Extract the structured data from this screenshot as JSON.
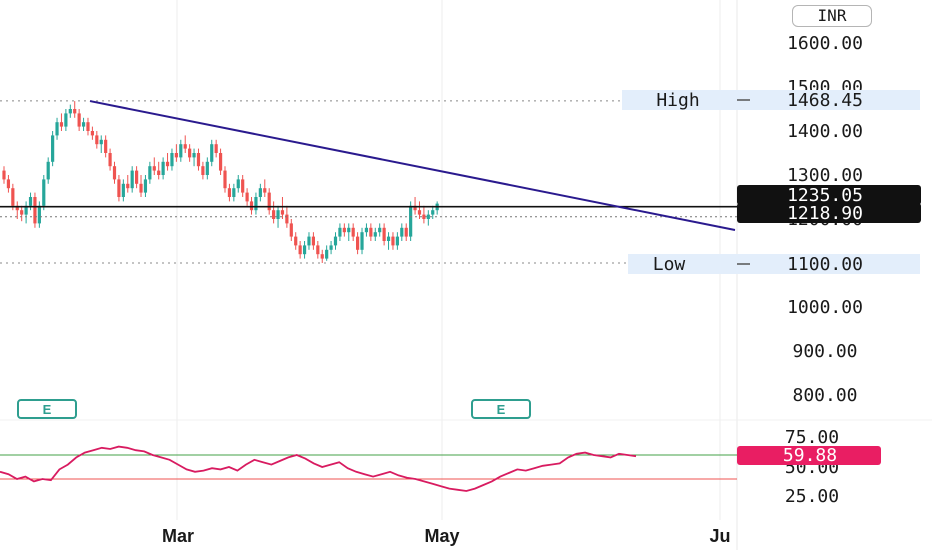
{
  "currency_label": "INR",
  "price_axis": {
    "ticks": [
      "1600.00",
      "1500.00",
      "1400.00",
      "1300.00",
      "1200.00",
      "1000.00",
      "900.00",
      "800.00"
    ]
  },
  "rsi_axis": {
    "ticks": [
      "75.00",
      "50.00",
      "25.00"
    ]
  },
  "date_axis": {
    "labels": [
      "Mar",
      "May",
      "Ju"
    ]
  },
  "markers": {
    "high": {
      "label": "High",
      "value": "1468.45"
    },
    "low": {
      "label": "Low",
      "value": "1100.00"
    },
    "price_a": "1235.05",
    "price_b": "1218.90",
    "rsi_value": "59.88"
  },
  "event_markers": [
    "E",
    "E"
  ],
  "colors": {
    "up": "#26a69a",
    "down": "#ef5350",
    "trendline": "#2a1a8e",
    "rsi_line": "#d81b60",
    "rsi_upper": "#43a047",
    "rsi_lower": "#ef5350",
    "label_bg": "#e3eefb",
    "dark_label": "#111111",
    "rsi_badge": "#e91e63"
  },
  "chart_data": {
    "type": "candlestick",
    "ylim": [
      760,
      1660
    ],
    "rsi_ylim": [
      20,
      80
    ],
    "rsi_levels": {
      "upper": 60,
      "lower": 40
    },
    "high": 1468.45,
    "low": 1100.0,
    "horizontal_line": 1228,
    "candles": [
      [
        1310,
        1320,
        1280,
        1290
      ],
      [
        1290,
        1300,
        1260,
        1270
      ],
      [
        1270,
        1280,
        1220,
        1230
      ],
      [
        1230,
        1240,
        1200,
        1220
      ],
      [
        1220,
        1230,
        1195,
        1210
      ],
      [
        1210,
        1240,
        1190,
        1230
      ],
      [
        1230,
        1260,
        1220,
        1250
      ],
      [
        1250,
        1260,
        1180,
        1190
      ],
      [
        1190,
        1240,
        1180,
        1230
      ],
      [
        1230,
        1300,
        1220,
        1290
      ],
      [
        1290,
        1340,
        1280,
        1330
      ],
      [
        1330,
        1400,
        1320,
        1390
      ],
      [
        1390,
        1430,
        1380,
        1420
      ],
      [
        1420,
        1440,
        1400,
        1410
      ],
      [
        1410,
        1450,
        1400,
        1440
      ],
      [
        1440,
        1460,
        1430,
        1450
      ],
      [
        1450,
        1468,
        1430,
        1440
      ],
      [
        1440,
        1450,
        1400,
        1410
      ],
      [
        1410,
        1430,
        1400,
        1420
      ],
      [
        1420,
        1430,
        1390,
        1400
      ],
      [
        1400,
        1410,
        1380,
        1390
      ],
      [
        1390,
        1400,
        1360,
        1370
      ],
      [
        1370,
        1390,
        1350,
        1380
      ],
      [
        1380,
        1390,
        1340,
        1350
      ],
      [
        1350,
        1360,
        1310,
        1320
      ],
      [
        1320,
        1330,
        1280,
        1290
      ],
      [
        1290,
        1300,
        1240,
        1250
      ],
      [
        1250,
        1290,
        1240,
        1280
      ],
      [
        1280,
        1300,
        1260,
        1270
      ],
      [
        1270,
        1320,
        1260,
        1310
      ],
      [
        1310,
        1320,
        1270,
        1280
      ],
      [
        1280,
        1300,
        1250,
        1260
      ],
      [
        1260,
        1300,
        1250,
        1290
      ],
      [
        1290,
        1330,
        1280,
        1320
      ],
      [
        1320,
        1340,
        1300,
        1310
      ],
      [
        1310,
        1330,
        1290,
        1300
      ],
      [
        1300,
        1340,
        1290,
        1330
      ],
      [
        1330,
        1350,
        1310,
        1320
      ],
      [
        1320,
        1360,
        1310,
        1350
      ],
      [
        1350,
        1370,
        1330,
        1340
      ],
      [
        1340,
        1380,
        1330,
        1370
      ],
      [
        1370,
        1390,
        1350,
        1360
      ],
      [
        1360,
        1370,
        1330,
        1340
      ],
      [
        1340,
        1360,
        1320,
        1350
      ],
      [
        1350,
        1360,
        1310,
        1320
      ],
      [
        1320,
        1330,
        1290,
        1300
      ],
      [
        1300,
        1340,
        1290,
        1330
      ],
      [
        1330,
        1380,
        1320,
        1370
      ],
      [
        1370,
        1380,
        1340,
        1350
      ],
      [
        1350,
        1360,
        1300,
        1310
      ],
      [
        1310,
        1320,
        1260,
        1270
      ],
      [
        1270,
        1280,
        1240,
        1250
      ],
      [
        1250,
        1280,
        1240,
        1270
      ],
      [
        1270,
        1300,
        1260,
        1290
      ],
      [
        1290,
        1300,
        1250,
        1260
      ],
      [
        1260,
        1270,
        1230,
        1240
      ],
      [
        1240,
        1250,
        1210,
        1220
      ],
      [
        1220,
        1260,
        1210,
        1250
      ],
      [
        1250,
        1280,
        1240,
        1270
      ],
      [
        1270,
        1290,
        1250,
        1260
      ],
      [
        1260,
        1270,
        1210,
        1220
      ],
      [
        1220,
        1240,
        1190,
        1200
      ],
      [
        1200,
        1230,
        1180,
        1220
      ],
      [
        1220,
        1250,
        1200,
        1210
      ],
      [
        1210,
        1230,
        1180,
        1190
      ],
      [
        1190,
        1200,
        1150,
        1160
      ],
      [
        1160,
        1170,
        1130,
        1140
      ],
      [
        1140,
        1150,
        1110,
        1120
      ],
      [
        1120,
        1150,
        1110,
        1140
      ],
      [
        1140,
        1170,
        1130,
        1160
      ],
      [
        1160,
        1170,
        1130,
        1140
      ],
      [
        1140,
        1150,
        1110,
        1120
      ],
      [
        1120,
        1130,
        1100,
        1110
      ],
      [
        1110,
        1140,
        1105,
        1130
      ],
      [
        1130,
        1150,
        1120,
        1140
      ],
      [
        1140,
        1170,
        1130,
        1160
      ],
      [
        1160,
        1190,
        1150,
        1180
      ],
      [
        1180,
        1190,
        1160,
        1170
      ],
      [
        1170,
        1190,
        1150,
        1180
      ],
      [
        1180,
        1190,
        1150,
        1160
      ],
      [
        1160,
        1170,
        1120,
        1130
      ],
      [
        1130,
        1180,
        1120,
        1170
      ],
      [
        1170,
        1190,
        1160,
        1180
      ],
      [
        1180,
        1190,
        1150,
        1160
      ],
      [
        1160,
        1180,
        1150,
        1170
      ],
      [
        1170,
        1190,
        1160,
        1180
      ],
      [
        1180,
        1190,
        1140,
        1150
      ],
      [
        1150,
        1170,
        1130,
        1160
      ],
      [
        1160,
        1170,
        1130,
        1140
      ],
      [
        1140,
        1170,
        1130,
        1160
      ],
      [
        1160,
        1190,
        1150,
        1180
      ],
      [
        1180,
        1190,
        1150,
        1160
      ],
      [
        1160,
        1240,
        1150,
        1230
      ],
      [
        1230,
        1250,
        1210,
        1220
      ],
      [
        1220,
        1240,
        1200,
        1210
      ],
      [
        1210,
        1230,
        1190,
        1200
      ],
      [
        1200,
        1220,
        1185,
        1210
      ],
      [
        1210,
        1230,
        1200,
        1220
      ],
      [
        1220,
        1240,
        1210,
        1235
      ]
    ],
    "trendline": {
      "from": {
        "index": 16,
        "value": 1468
      },
      "to": {
        "index": 136,
        "value": 1175
      }
    },
    "rsi": [
      46,
      44,
      40,
      42,
      38,
      40,
      39,
      48,
      52,
      58,
      62,
      64,
      66,
      65,
      67,
      66,
      64,
      63,
      60,
      58,
      56,
      52,
      48,
      46,
      47,
      49,
      48,
      50,
      47,
      52,
      56,
      54,
      52,
      55,
      58,
      60,
      57,
      53,
      50,
      52,
      54,
      49,
      46,
      44,
      42,
      44,
      46,
      43,
      41,
      40,
      38,
      36,
      34,
      32,
      31,
      30,
      32,
      35,
      38,
      42,
      45,
      48,
      47,
      49,
      51,
      52,
      53,
      58,
      61,
      62,
      60,
      59,
      58,
      61,
      60,
      59
    ]
  }
}
